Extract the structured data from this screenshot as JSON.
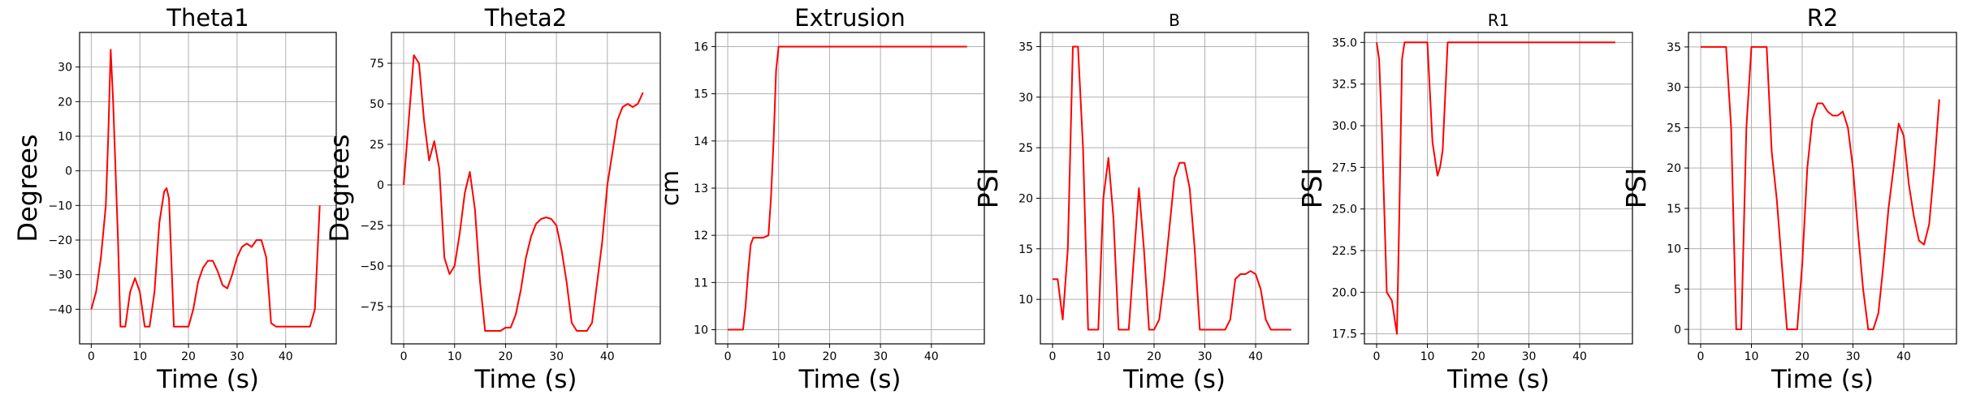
{
  "figure": {
    "line_color": "#ff0000",
    "grid_color": "#b0b0b0",
    "background": "#ffffff"
  },
  "chart_data": [
    {
      "type": "line",
      "title": "Theta1",
      "xlabel": "Time (s)",
      "ylabel": "Degrees",
      "xlim": [
        -2.4,
        50.4
      ],
      "ylim": [
        -50,
        40
      ],
      "xticks": [
        0,
        10,
        20,
        30,
        40
      ],
      "yticks": [
        -40,
        -30,
        -20,
        -10,
        0,
        10,
        20,
        30
      ],
      "grid": true,
      "series": [
        {
          "color": "#ff0000",
          "x": [
            0,
            1,
            2,
            3,
            3.5,
            4,
            4.5,
            5,
            5.5,
            6,
            7,
            8,
            9,
            10,
            11,
            12,
            13,
            14,
            15,
            15.5,
            16,
            17,
            18,
            19,
            20,
            21,
            22,
            23,
            24,
            25,
            26,
            27,
            28,
            29,
            30,
            31,
            32,
            33,
            34,
            35,
            36,
            37,
            38,
            39,
            40,
            42,
            44,
            45,
            46,
            47
          ],
          "y": [
            -40,
            -35,
            -25,
            -10,
            10,
            35,
            20,
            0,
            -20,
            -45,
            -45,
            -35,
            -31,
            -35,
            -45,
            -45,
            -35,
            -15,
            -6,
            -5,
            -8,
            -45,
            -45,
            -45,
            -45,
            -40,
            -32,
            -28,
            -26,
            -26,
            -29,
            -33,
            -34,
            -30,
            -25,
            -22,
            -21,
            -22,
            -20,
            -20,
            -25,
            -44,
            -45,
            -45,
            -45,
            -45,
            -45,
            -45,
            -40,
            -10
          ]
        }
      ]
    },
    {
      "type": "line",
      "title": "Theta2",
      "xlabel": "Time (s)",
      "ylabel": "Degrees",
      "xlim": [
        -2.4,
        50.4
      ],
      "ylim": [
        -98,
        94
      ],
      "xticks": [
        0,
        10,
        20,
        30,
        40
      ],
      "yticks": [
        -75,
        -50,
        -25,
        0,
        25,
        50,
        75
      ],
      "grid": true,
      "series": [
        {
          "color": "#ff0000",
          "x": [
            0,
            1,
            2,
            3,
            4,
            5,
            6,
            7,
            8,
            9,
            10,
            11,
            12,
            13,
            14,
            15,
            16,
            17,
            18,
            19,
            20,
            21,
            22,
            23,
            24,
            25,
            26,
            27,
            28,
            29,
            30,
            31,
            32,
            33,
            34,
            35,
            36,
            37,
            38,
            39,
            40,
            41,
            42,
            43,
            44,
            45,
            46,
            47
          ],
          "y": [
            0,
            40,
            80,
            75,
            40,
            15,
            27,
            10,
            -45,
            -55,
            -50,
            -30,
            -5,
            8,
            -15,
            -60,
            -90,
            -90,
            -90,
            -90,
            -88,
            -88,
            -80,
            -65,
            -45,
            -32,
            -24,
            -21,
            -20,
            -21,
            -25,
            -40,
            -60,
            -85,
            -90,
            -90,
            -90,
            -85,
            -60,
            -35,
            0,
            20,
            40,
            48,
            50,
            48,
            50,
            57
          ]
        }
      ]
    },
    {
      "type": "line",
      "title": "Extrusion",
      "xlabel": "Time (s)",
      "ylabel": "cm",
      "xlim": [
        -2.4,
        50.4
      ],
      "ylim": [
        9.7,
        16.3
      ],
      "xticks": [
        0,
        10,
        20,
        30,
        40
      ],
      "yticks": [
        10,
        11,
        12,
        13,
        14,
        15,
        16
      ],
      "grid": true,
      "series": [
        {
          "color": "#ff0000",
          "x": [
            0,
            1,
            2,
            3,
            3.5,
            4,
            4.5,
            5,
            6,
            7,
            8,
            8.5,
            9,
            9.5,
            10,
            11,
            20,
            30,
            40,
            47
          ],
          "y": [
            10,
            10,
            10,
            10,
            10.5,
            11.2,
            11.8,
            11.95,
            11.95,
            11.95,
            12,
            12.8,
            14,
            15.5,
            16,
            16,
            16,
            16,
            16,
            16
          ]
        }
      ]
    },
    {
      "type": "line",
      "title": "B",
      "xlabel": "Time (s)",
      "ylabel": "PSI",
      "xlim": [
        -2.4,
        50.4
      ],
      "ylim": [
        5.6,
        36.4
      ],
      "xticks": [
        0,
        10,
        20,
        30,
        40
      ],
      "yticks": [
        10,
        15,
        20,
        25,
        30,
        35
      ],
      "grid": true,
      "series": [
        {
          "color": "#ff0000",
          "x": [
            0,
            1,
            2,
            3,
            4,
            5,
            6,
            7,
            8,
            9,
            10,
            11,
            12,
            13,
            14,
            15,
            16,
            17,
            18,
            19,
            20,
            21,
            22,
            23,
            24,
            25,
            26,
            27,
            28,
            29,
            30,
            31,
            32,
            33,
            34,
            35,
            36,
            37,
            38,
            39,
            40,
            41,
            42,
            43,
            44,
            45,
            46,
            47
          ],
          "y": [
            12,
            12,
            8,
            15,
            35,
            35,
            25,
            7,
            7,
            7,
            20,
            24,
            18,
            7,
            7,
            7,
            14,
            21,
            15,
            7,
            7,
            8,
            12,
            17,
            22,
            23.5,
            23.5,
            21,
            15,
            7,
            7,
            7,
            7,
            7,
            7,
            8,
            12,
            12.5,
            12.5,
            12.8,
            12.5,
            11,
            8,
            7,
            7,
            7,
            7,
            7
          ]
        }
      ]
    },
    {
      "type": "line",
      "title": "R1",
      "xlabel": "Time (s)",
      "ylabel": "PSI",
      "xlim": [
        -2.4,
        50.4
      ],
      "ylim": [
        16.9,
        35.6
      ],
      "xticks": [
        0,
        10,
        20,
        30,
        40
      ],
      "yticks": [
        17.5,
        20.0,
        22.5,
        25.0,
        27.5,
        30.0,
        32.5,
        35.0
      ],
      "grid": true,
      "series": [
        {
          "color": "#ff0000",
          "x": [
            0,
            0.5,
            1,
            2,
            3,
            4,
            4.5,
            5,
            5.5,
            6,
            7,
            8,
            9,
            10,
            11,
            12,
            12.5,
            13,
            14,
            15,
            16,
            20,
            30,
            40,
            47
          ],
          "y": [
            35,
            34,
            30,
            20,
            19.5,
            17.5,
            25,
            34,
            35,
            35,
            35,
            35,
            35,
            35,
            29,
            27,
            27.5,
            28.5,
            35,
            35,
            35,
            35,
            35,
            35,
            35
          ]
        }
      ]
    },
    {
      "type": "line",
      "title": "R2",
      "xlabel": "Time (s)",
      "ylabel": "PSI",
      "xlim": [
        -2.4,
        50.4
      ],
      "ylim": [
        -1.8,
        36.8
      ],
      "xticks": [
        0,
        10,
        20,
        30,
        40
      ],
      "yticks": [
        0,
        5,
        10,
        15,
        20,
        25,
        30,
        35
      ],
      "grid": true,
      "series": [
        {
          "color": "#ff0000",
          "x": [
            0,
            1,
            2,
            3,
            4,
            5,
            6,
            7,
            8,
            9,
            10,
            11,
            12,
            13,
            14,
            15,
            16,
            17,
            18,
            19,
            20,
            21,
            22,
            23,
            24,
            25,
            26,
            27,
            28,
            29,
            30,
            31,
            32,
            33,
            34,
            35,
            36,
            37,
            38,
            39,
            40,
            41,
            42,
            43,
            44,
            45,
            46,
            47
          ],
          "y": [
            35,
            35,
            35,
            35,
            35,
            35,
            25,
            0,
            0,
            25,
            35,
            35,
            35,
            35,
            22,
            16,
            8,
            0,
            0,
            0,
            8,
            20,
            26,
            28,
            28,
            27,
            26.5,
            26.5,
            27,
            25,
            20,
            12,
            5,
            0,
            0,
            2,
            8,
            15,
            20,
            25.5,
            24,
            18,
            14,
            11,
            10.5,
            13,
            20,
            28.5
          ]
        }
      ]
    }
  ]
}
